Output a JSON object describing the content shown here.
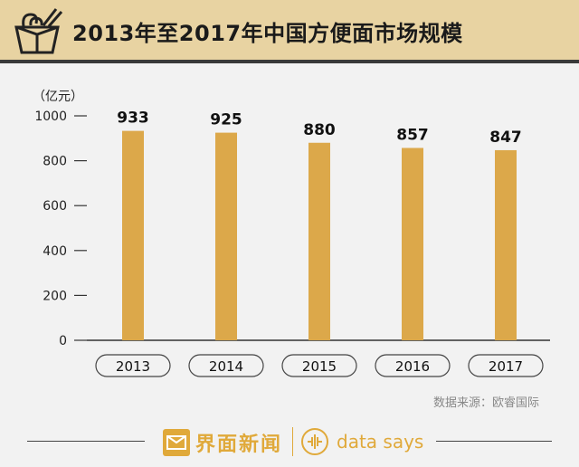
{
  "header": {
    "title": "2013年至2017年中国方便面市场规模"
  },
  "chart_data": {
    "type": "bar",
    "unit_label": "（亿元）",
    "categories": [
      "2013",
      "2014",
      "2015",
      "2016",
      "2017"
    ],
    "values": [
      933,
      925,
      880,
      857,
      847
    ],
    "data_labels": [
      "933",
      "925",
      "880",
      "857",
      "847"
    ],
    "yticks": [
      0,
      200,
      400,
      600,
      800,
      1000
    ],
    "ylim": [
      0,
      1000
    ],
    "grid": false,
    "bar_color": "#dca84a"
  },
  "source": "数据来源：欧睿国际",
  "footer": {
    "brand_cn": "界面新闻",
    "brand_en": "data says"
  },
  "colors": {
    "header_bg": "#e8d3a2",
    "accent": "#e0a93a"
  }
}
